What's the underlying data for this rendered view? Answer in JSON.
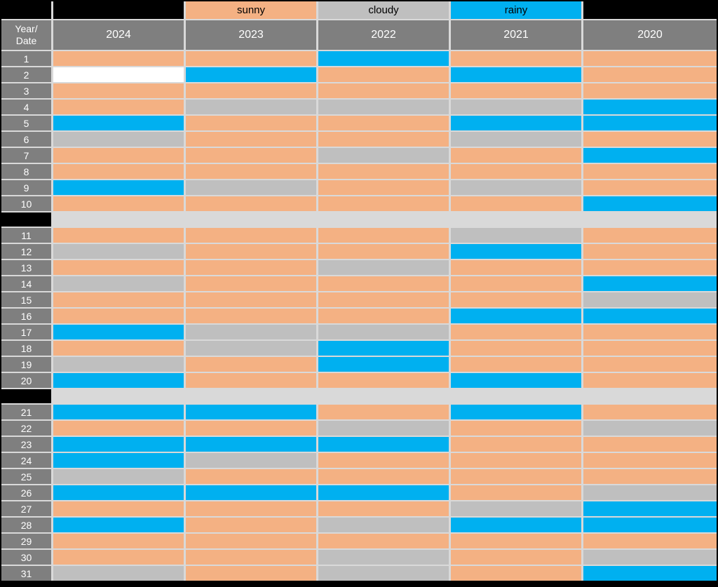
{
  "colors": {
    "sunny": "#f4b183",
    "cloudy": "#bfbfbf",
    "rainy": "#00b0f0",
    "empty": "#ffffff",
    "black": "#000000",
    "header_bg": "#7f7f7f",
    "header_text": "#ffffff",
    "legend_text": "#000000",
    "gap_bg": "#d9d9d9"
  },
  "legend": {
    "items": [
      {
        "label": "",
        "type": "black"
      },
      {
        "label": "sunny",
        "type": "sunny"
      },
      {
        "label": "cloudy",
        "type": "cloudy"
      },
      {
        "label": "rainy",
        "type": "rainy"
      },
      {
        "label": "",
        "type": "black"
      }
    ]
  },
  "header": {
    "corner_line1": "Year/",
    "corner_line2": "Date",
    "years": [
      "2024",
      "2023",
      "2022",
      "2021",
      "2020"
    ]
  },
  "group_breaks_after": [
    10,
    20
  ],
  "chart_data": {
    "type": "heatmap",
    "title": "",
    "x_label": "Year",
    "y_label": "Date",
    "x_categories": [
      "2024",
      "2023",
      "2022",
      "2021",
      "2020"
    ],
    "y_categories": [
      1,
      2,
      3,
      4,
      5,
      6,
      7,
      8,
      9,
      10,
      11,
      12,
      13,
      14,
      15,
      16,
      17,
      18,
      19,
      20,
      21,
      22,
      23,
      24,
      25,
      26,
      27,
      28,
      29,
      30,
      31
    ],
    "categories": [
      "sunny",
      "cloudy",
      "rainy",
      "empty"
    ],
    "legend_entries": [
      "sunny",
      "cloudy",
      "rainy"
    ],
    "rows": [
      {
        "date": "1",
        "cells": [
          "sunny",
          "sunny",
          "rainy",
          "sunny",
          "sunny"
        ]
      },
      {
        "date": "2",
        "cells": [
          "empty",
          "rainy",
          "sunny",
          "rainy",
          "sunny"
        ]
      },
      {
        "date": "3",
        "cells": [
          "sunny",
          "sunny",
          "sunny",
          "sunny",
          "sunny"
        ]
      },
      {
        "date": "4",
        "cells": [
          "sunny",
          "cloudy",
          "cloudy",
          "cloudy",
          "rainy"
        ]
      },
      {
        "date": "5",
        "cells": [
          "rainy",
          "sunny",
          "sunny",
          "rainy",
          "rainy"
        ]
      },
      {
        "date": "6",
        "cells": [
          "cloudy",
          "sunny",
          "sunny",
          "cloudy",
          "sunny"
        ]
      },
      {
        "date": "7",
        "cells": [
          "sunny",
          "sunny",
          "cloudy",
          "sunny",
          "rainy"
        ]
      },
      {
        "date": "8",
        "cells": [
          "sunny",
          "sunny",
          "sunny",
          "sunny",
          "sunny"
        ]
      },
      {
        "date": "9",
        "cells": [
          "rainy",
          "cloudy",
          "sunny",
          "cloudy",
          "sunny"
        ]
      },
      {
        "date": "10",
        "cells": [
          "sunny",
          "sunny",
          "sunny",
          "sunny",
          "rainy"
        ]
      },
      {
        "date": "11",
        "cells": [
          "sunny",
          "sunny",
          "sunny",
          "cloudy",
          "sunny"
        ]
      },
      {
        "date": "12",
        "cells": [
          "cloudy",
          "sunny",
          "sunny",
          "rainy",
          "sunny"
        ]
      },
      {
        "date": "13",
        "cells": [
          "sunny",
          "sunny",
          "cloudy",
          "sunny",
          "sunny"
        ]
      },
      {
        "date": "14",
        "cells": [
          "cloudy",
          "sunny",
          "sunny",
          "sunny",
          "rainy"
        ]
      },
      {
        "date": "15",
        "cells": [
          "sunny",
          "sunny",
          "sunny",
          "sunny",
          "cloudy"
        ]
      },
      {
        "date": "16",
        "cells": [
          "sunny",
          "sunny",
          "sunny",
          "rainy",
          "rainy"
        ]
      },
      {
        "date": "17",
        "cells": [
          "rainy",
          "cloudy",
          "cloudy",
          "sunny",
          "sunny"
        ]
      },
      {
        "date": "18",
        "cells": [
          "sunny",
          "cloudy",
          "rainy",
          "sunny",
          "sunny"
        ]
      },
      {
        "date": "19",
        "cells": [
          "cloudy",
          "sunny",
          "rainy",
          "sunny",
          "sunny"
        ]
      },
      {
        "date": "20",
        "cells": [
          "rainy",
          "sunny",
          "sunny",
          "rainy",
          "sunny"
        ]
      },
      {
        "date": "21",
        "cells": [
          "rainy",
          "rainy",
          "sunny",
          "rainy",
          "sunny"
        ]
      },
      {
        "date": "22",
        "cells": [
          "sunny",
          "sunny",
          "cloudy",
          "sunny",
          "cloudy"
        ]
      },
      {
        "date": "23",
        "cells": [
          "rainy",
          "rainy",
          "rainy",
          "sunny",
          "sunny"
        ]
      },
      {
        "date": "24",
        "cells": [
          "rainy",
          "cloudy",
          "sunny",
          "sunny",
          "sunny"
        ]
      },
      {
        "date": "25",
        "cells": [
          "cloudy",
          "sunny",
          "sunny",
          "sunny",
          "sunny"
        ]
      },
      {
        "date": "26",
        "cells": [
          "rainy",
          "rainy",
          "rainy",
          "sunny",
          "cloudy"
        ]
      },
      {
        "date": "27",
        "cells": [
          "sunny",
          "sunny",
          "sunny",
          "cloudy",
          "rainy"
        ]
      },
      {
        "date": "28",
        "cells": [
          "rainy",
          "sunny",
          "cloudy",
          "rainy",
          "rainy"
        ]
      },
      {
        "date": "29",
        "cells": [
          "sunny",
          "sunny",
          "sunny",
          "sunny",
          "sunny"
        ]
      },
      {
        "date": "30",
        "cells": [
          "sunny",
          "sunny",
          "cloudy",
          "sunny",
          "cloudy"
        ]
      },
      {
        "date": "31",
        "cells": [
          "cloudy",
          "sunny",
          "cloudy",
          "sunny",
          "rainy"
        ]
      }
    ]
  }
}
